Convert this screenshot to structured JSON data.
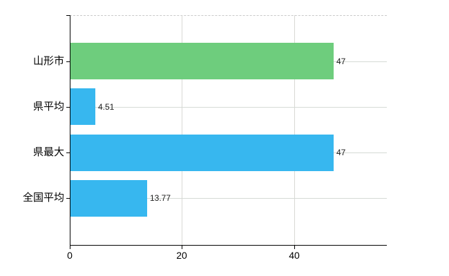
{
  "chart_data": {
    "type": "bar",
    "orientation": "horizontal",
    "title": "",
    "xlabel": "",
    "ylabel": "",
    "categories": [
      "山形市",
      "県平均",
      "県最大",
      "全国平均"
    ],
    "values": [
      47,
      4.51,
      47,
      13.77
    ],
    "value_labels": [
      "47",
      "4.51",
      "47",
      "13.77"
    ],
    "bar_colors": [
      "#6ecd7d",
      "#37b7ef",
      "#37b7ef",
      "#37b7ef"
    ],
    "x_ticks": [
      0,
      20,
      40
    ],
    "x_tick_labels": [
      "0",
      "20",
      "40"
    ],
    "xlim": [
      0,
      56.5
    ],
    "grid": true,
    "legend": false,
    "accent_colors": {
      "highlight_bar": "#6ecd7d",
      "default_bar": "#37b7ef",
      "grid": "#d6d6d6",
      "axis": "#000000",
      "background": "#ffffff"
    }
  }
}
